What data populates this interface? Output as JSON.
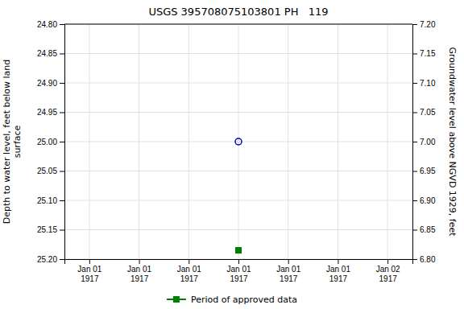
{
  "chart_data": {
    "type": "scatter",
    "title": "USGS 395708075103801 PH   119",
    "y_label": "Depth to water level, feet below land\nsurface",
    "y2_label": "Groundwater level above NGVD 1929, feet",
    "categories": [
      "Jan 01\n1917",
      "Jan 01\n1917",
      "Jan 01\n1917",
      "Jan 01\n1917",
      "Jan 01\n1917",
      "Jan 01\n1917",
      "Jan 02\n1917"
    ],
    "series": [
      {
        "color": "#0000cc",
        "marker": "circle-open",
        "values": [
          null,
          null,
          null,
          25.0,
          null,
          null,
          null
        ]
      },
      {
        "name": "Period of approved data",
        "color": "#008000",
        "marker": "square",
        "values": [
          null,
          null,
          null,
          25.185,
          null,
          null,
          null
        ]
      }
    ],
    "ylim": [
      25.2,
      24.8
    ],
    "yticks": [
      {
        "value": 24.8,
        "label": "24.80"
      },
      {
        "value": 24.85,
        "label": "24.85"
      },
      {
        "value": 24.9,
        "label": "24.90"
      },
      {
        "value": 24.95,
        "label": "24.95"
      },
      {
        "value": 25.0,
        "label": "25.00"
      },
      {
        "value": 25.05,
        "label": "25.05"
      },
      {
        "value": 25.1,
        "label": "25.10"
      },
      {
        "value": 25.15,
        "label": "25.15"
      },
      {
        "value": 25.2,
        "label": "25.20"
      }
    ],
    "y2lim": [
      6.8,
      7.2
    ],
    "y2ticks": [
      {
        "value": 6.8,
        "label": "6.80"
      },
      {
        "value": 6.85,
        "label": "6.85"
      },
      {
        "value": 6.9,
        "label": "6.90"
      },
      {
        "value": 6.95,
        "label": "6.95"
      },
      {
        "value": 7.0,
        "label": "7.00"
      },
      {
        "value": 7.05,
        "label": "7.05"
      },
      {
        "value": 7.1,
        "label": "7.10"
      },
      {
        "value": 7.15,
        "label": "7.15"
      },
      {
        "value": 7.2,
        "label": "7.20"
      }
    ],
    "grid": true,
    "legend": "bottom"
  }
}
